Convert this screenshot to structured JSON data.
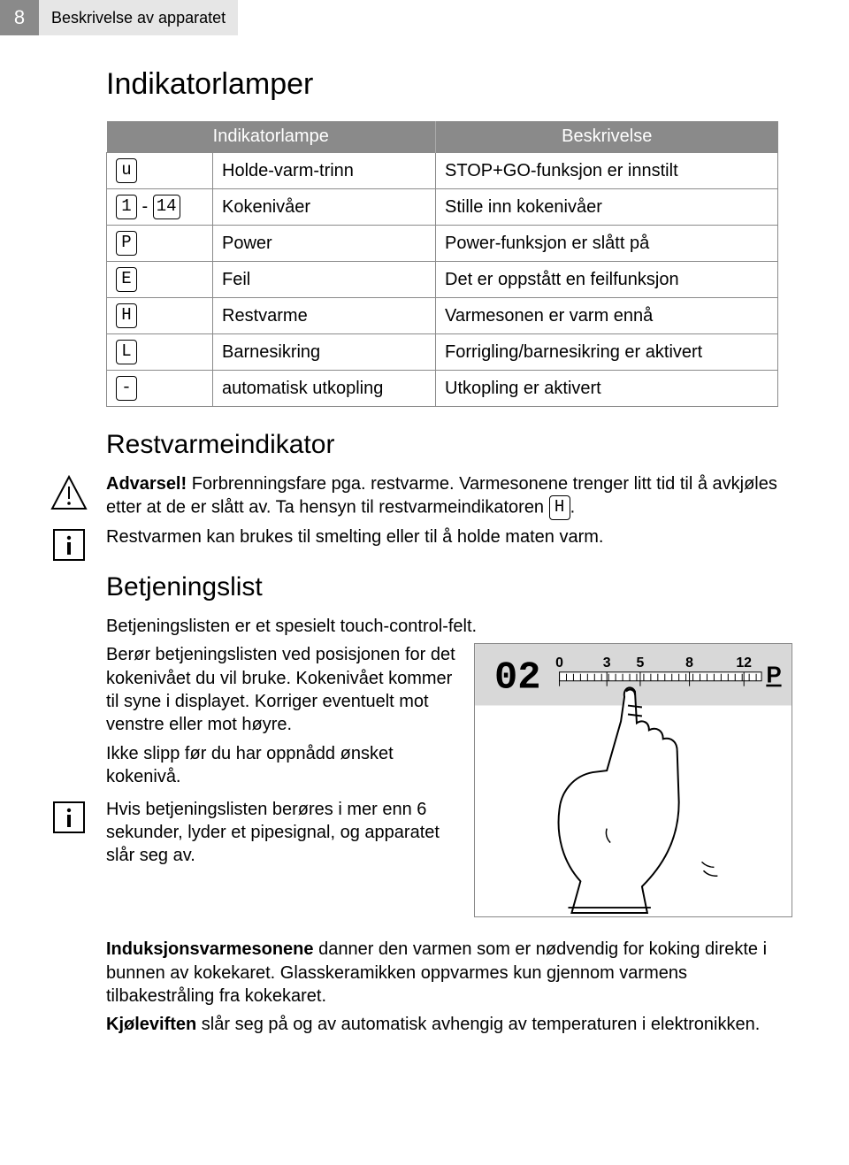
{
  "header": {
    "page_number": "8",
    "section": "Beskrivelse av apparatet"
  },
  "h1": "Indikatorlamper",
  "table": {
    "head_left": "Indikatorlampe",
    "head_right": "Beskrivelse",
    "rows": [
      {
        "sym_a": "u",
        "sym_b": "",
        "label": "Holde-varm-trinn",
        "desc": "STOP+GO-funksjon er innstilt"
      },
      {
        "sym_a": "1",
        "sym_b": "14",
        "label": "Kokenivåer",
        "desc": "Stille inn kokenivåer"
      },
      {
        "sym_a": "P",
        "sym_b": "",
        "label": "Power",
        "desc": "Power-funksjon er slått på"
      },
      {
        "sym_a": "E",
        "sym_b": "",
        "label": "Feil",
        "desc": "Det er oppstått en feilfunksjon"
      },
      {
        "sym_a": "H",
        "sym_b": "",
        "label": "Restvarme",
        "desc": "Varmesonen er varm ennå"
      },
      {
        "sym_a": "L",
        "sym_b": "",
        "label": "Barnesikring",
        "desc": "Forrigling/barnesikring er aktivert"
      },
      {
        "sym_a": "-",
        "sym_b": "",
        "label": "automatisk utkopling",
        "desc": "Utkopling er aktivert"
      }
    ]
  },
  "h2_restvarme": "Restvarmeindikator",
  "warning": {
    "lead": "Advarsel! ",
    "text": "Forbrenningsfare pga. restvarme. Varmesonene trenger litt tid til å avkjøles etter at de er slått av. Ta hensyn til restvarmeindikatoren ",
    "sym": "H",
    "tail": "."
  },
  "info1": "Restvarmen kan brukes til smelting eller til å holde maten varm.",
  "h2_betj": "Betjeningslist",
  "betj_intro": "Betjeningslisten er et spesielt touch-control-felt.",
  "betj_p1": "Berør betjeningslisten ved posisjonen for det kokenivået du vil bruke. Kokenivået kommer til syne i displayet. Korriger eventuelt mot venstre eller mot høyre.",
  "betj_p2": "Ikke slipp før du har oppnådd ønsket kokenivå.",
  "info2": "Hvis betjeningslisten berøres i mer enn 6 sekunder, lyder et pipesignal, og apparatet slår seg av.",
  "induksjon_lead": "Induksjonsvarmesonene",
  "induksjon_text": " danner den varmen som er nødvendig for koking direkte i bunnen av kokekaret. Glasskeramikken oppvarmes kun gjennom varmens tilbakestråling fra kokekaret.",
  "kjolevifte_lead": "Kjøleviften",
  "kjolevifte_text": " slår seg på og av automatisk avhengig av temperaturen i elektronikken.",
  "fig": {
    "display": "02",
    "ticks": [
      "0",
      "3",
      "5",
      "8",
      "12"
    ],
    "p_label": "P",
    "bg": "#d8d8d8",
    "bar_bg": "#ffffff"
  }
}
